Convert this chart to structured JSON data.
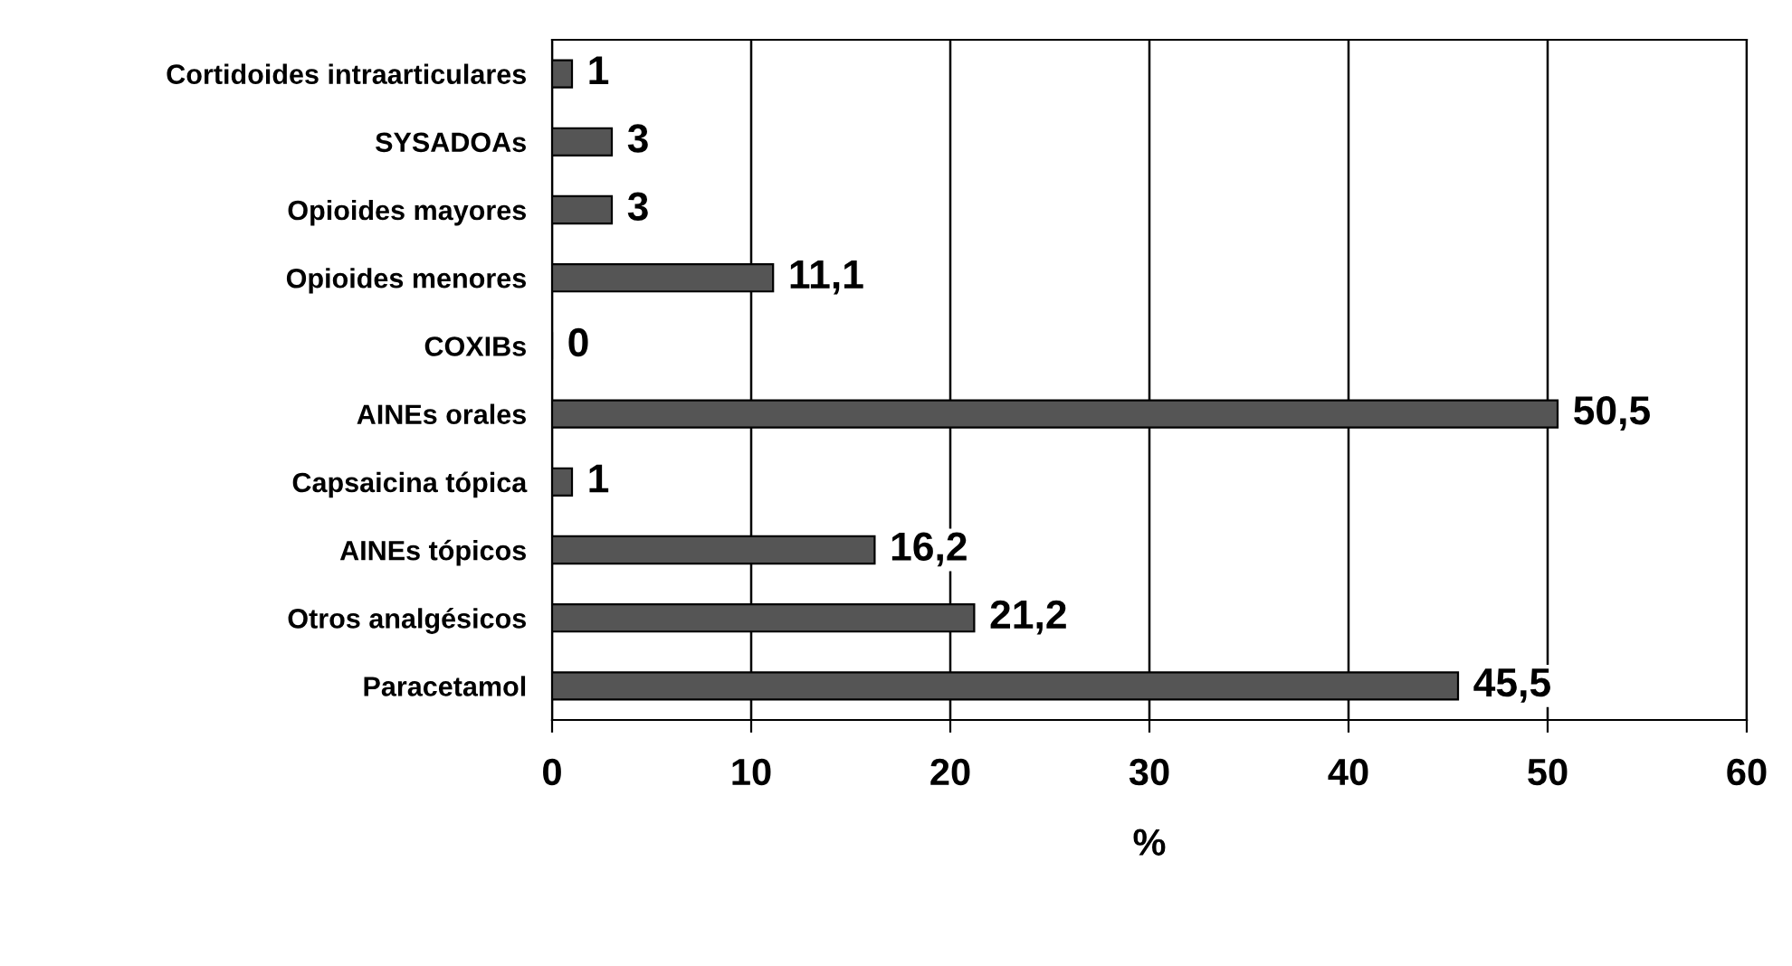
{
  "chart_data": {
    "type": "bar",
    "orientation": "horizontal",
    "categories": [
      "Cortidoides intraarticulares",
      "SYSADOAs",
      "Opioides mayores",
      "Opioides menores",
      "COXIBs",
      "AINEs orales",
      "Capsaicina tópica",
      "AINEs tópicos",
      "Otros analgésicos",
      "Paracetamol"
    ],
    "values": [
      1,
      3,
      3,
      11.1,
      0,
      50.5,
      1,
      16.2,
      21.2,
      45.5
    ],
    "value_labels": [
      "1",
      "3",
      "3",
      "11,1",
      "0",
      "50,5",
      "1",
      "16,2",
      "21,2",
      "45,5"
    ],
    "color": "#555555",
    "xlabel": "%",
    "xlim": [
      0,
      60
    ],
    "xticks": [
      0,
      10,
      20,
      30,
      40,
      50,
      60
    ],
    "grid": "x",
    "legend": false
  }
}
